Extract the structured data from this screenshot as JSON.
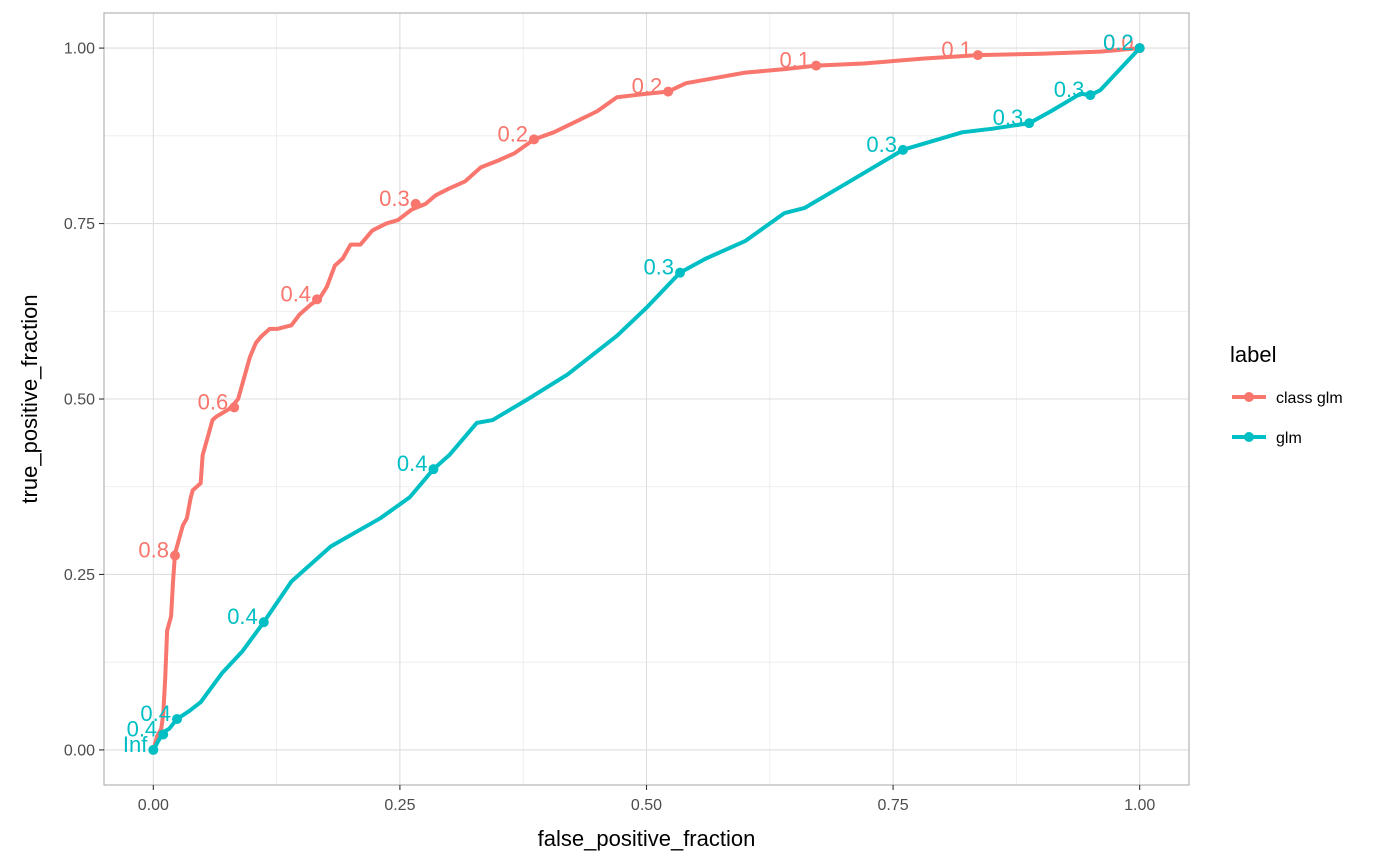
{
  "chart_data": {
    "type": "line",
    "xlabel": "false_positive_fraction",
    "ylabel": "true_positive_fraction",
    "xlim": [
      -0.05,
      1.05
    ],
    "ylim": [
      -0.05,
      1.05
    ],
    "x_ticks": [
      0,
      0.25,
      0.5,
      0.75,
      1
    ],
    "x_tick_labels": [
      "0.00",
      "0.25",
      "0.50",
      "0.75",
      "1.00"
    ],
    "y_ticks": [
      0,
      0.25,
      0.5,
      0.75,
      1
    ],
    "y_tick_labels": [
      "0.00",
      "0.25",
      "0.50",
      "0.75",
      "1.00"
    ],
    "grid": true,
    "legend": {
      "title": "label",
      "position": "right"
    },
    "series": [
      {
        "name": "class glm",
        "color": "#F8766D",
        "x": [
          0.0,
          0.002,
          0.004,
          0.008,
          0.01,
          0.012,
          0.014,
          0.016,
          0.018,
          0.02,
          0.022,
          0.024,
          0.026,
          0.028,
          0.03,
          0.034,
          0.038,
          0.04,
          0.044,
          0.048,
          0.05,
          0.054,
          0.058,
          0.06,
          0.064,
          0.07,
          0.076,
          0.08,
          0.086,
          0.09,
          0.094,
          0.098,
          0.104,
          0.11,
          0.118,
          0.126,
          0.14,
          0.148,
          0.16,
          0.168,
          0.176,
          0.184,
          0.192,
          0.2,
          0.21,
          0.222,
          0.236,
          0.248,
          0.262,
          0.276,
          0.286,
          0.3,
          0.316,
          0.332,
          0.35,
          0.366,
          0.386,
          0.406,
          0.428,
          0.45,
          0.47,
          0.5,
          0.522,
          0.54,
          0.56,
          0.6,
          0.64,
          0.672,
          0.72,
          0.78,
          0.836,
          0.9,
          0.96,
          1.0
        ],
        "y": [
          0.0,
          0.01,
          0.02,
          0.03,
          0.05,
          0.1,
          0.17,
          0.18,
          0.19,
          0.24,
          0.28,
          0.29,
          0.3,
          0.31,
          0.32,
          0.33,
          0.36,
          0.37,
          0.375,
          0.38,
          0.42,
          0.44,
          0.46,
          0.47,
          0.475,
          0.48,
          0.485,
          0.49,
          0.5,
          0.52,
          0.54,
          0.56,
          0.58,
          0.59,
          0.6,
          0.6,
          0.605,
          0.62,
          0.635,
          0.642,
          0.66,
          0.69,
          0.7,
          0.72,
          0.72,
          0.74,
          0.75,
          0.755,
          0.77,
          0.778,
          0.79,
          0.8,
          0.81,
          0.83,
          0.84,
          0.85,
          0.87,
          0.88,
          0.895,
          0.91,
          0.93,
          0.935,
          0.938,
          0.95,
          0.955,
          0.965,
          0.97,
          0.975,
          0.978,
          0.985,
          0.99,
          0.992,
          0.995,
          1.0
        ],
        "points": [
          {
            "x": 0.022,
            "y": 0.277,
            "label": "0.8"
          },
          {
            "x": 0.082,
            "y": 0.488,
            "label": "0.6"
          },
          {
            "x": 0.166,
            "y": 0.642,
            "label": "0.4"
          },
          {
            "x": 0.266,
            "y": 0.778,
            "label": "0.3"
          },
          {
            "x": 0.386,
            "y": 0.87,
            "label": "0.2"
          },
          {
            "x": 0.522,
            "y": 0.938,
            "label": "0.2"
          },
          {
            "x": 0.672,
            "y": 0.975,
            "label": "0.1"
          },
          {
            "x": 0.836,
            "y": 0.99,
            "label": "0.1"
          },
          {
            "x": 1.0,
            "y": 1.0,
            "label": "0.0"
          }
        ]
      },
      {
        "name": "glm",
        "color": "#00BFC4",
        "x": [
          0.0,
          0.004,
          0.008,
          0.012,
          0.016,
          0.024,
          0.036,
          0.048,
          0.07,
          0.09,
          0.112,
          0.14,
          0.18,
          0.23,
          0.26,
          0.284,
          0.3,
          0.328,
          0.344,
          0.38,
          0.42,
          0.47,
          0.5,
          0.534,
          0.56,
          0.6,
          0.64,
          0.66,
          0.7,
          0.76,
          0.82,
          0.85,
          0.888,
          0.91,
          0.94,
          0.95,
          0.96,
          0.99,
          1.0
        ],
        "y": [
          0.0,
          0.01,
          0.02,
          0.027,
          0.03,
          0.044,
          0.055,
          0.068,
          0.11,
          0.14,
          0.182,
          0.24,
          0.29,
          0.33,
          0.36,
          0.4,
          0.42,
          0.466,
          0.47,
          0.5,
          0.535,
          0.59,
          0.63,
          0.68,
          0.7,
          0.725,
          0.765,
          0.772,
          0.805,
          0.855,
          0.88,
          0.885,
          0.893,
          0.91,
          0.935,
          0.933,
          0.94,
          0.985,
          1.0
        ],
        "points": [
          {
            "x": 0.0,
            "y": 0.0,
            "label": "Inf"
          },
          {
            "x": 0.01,
            "y": 0.022,
            "label": "0.4"
          },
          {
            "x": 0.024,
            "y": 0.044,
            "label": "0.4"
          },
          {
            "x": 0.112,
            "y": 0.182,
            "label": "0.4"
          },
          {
            "x": 0.284,
            "y": 0.4,
            "label": "0.4"
          },
          {
            "x": 0.534,
            "y": 0.68,
            "label": "0.3"
          },
          {
            "x": 0.76,
            "y": 0.855,
            "label": "0.3"
          },
          {
            "x": 0.888,
            "y": 0.893,
            "label": "0.3"
          },
          {
            "x": 0.95,
            "y": 0.933,
            "label": "0.3"
          },
          {
            "x": 1.0,
            "y": 1.0,
            "label": "0.2"
          }
        ]
      }
    ]
  }
}
